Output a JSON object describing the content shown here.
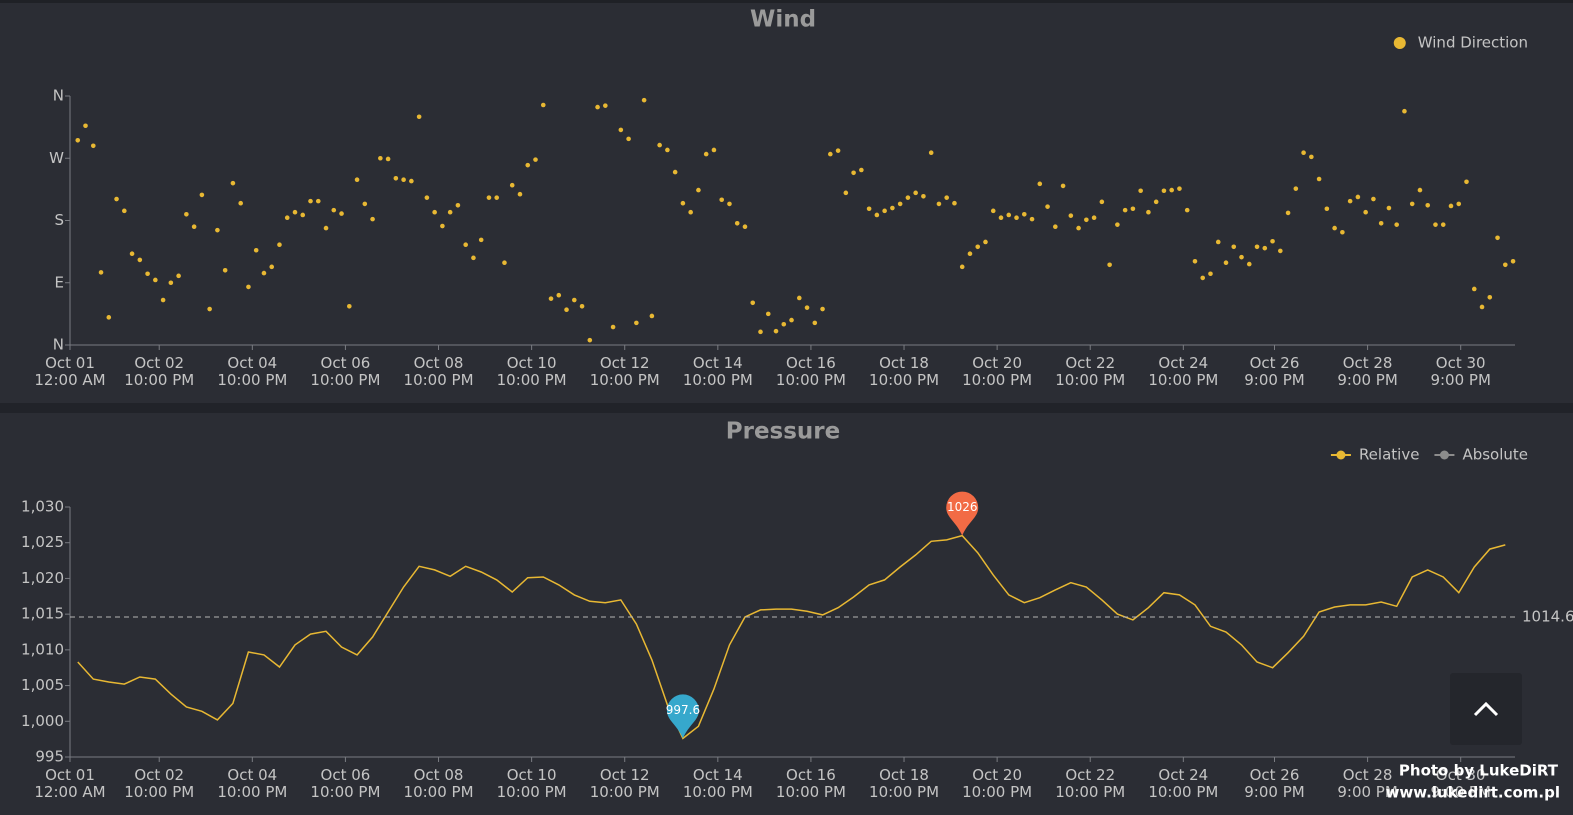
{
  "chart_data": [
    {
      "type": "scatter",
      "title": "Wind",
      "series": [
        {
          "name": "Wind Direction",
          "color": "#e8b833",
          "values": [
            296,
            317,
            288,
            105,
            40,
            211,
            194,
            132,
            123,
            103,
            94,
            65,
            90,
            100,
            189,
            171,
            217,
            52,
            166,
            108,
            234,
            205,
            84,
            137,
            104,
            113,
            145,
            184,
            192,
            188,
            208,
            208,
            169,
            195,
            190,
            56,
            239,
            204,
            182,
            270,
            269,
            241,
            239,
            237,
            330,
            213,
            192,
            172,
            192,
            202,
            145,
            126,
            152,
            213,
            213,
            119,
            231,
            218,
            260,
            268,
            347,
            67,
            72,
            51,
            65,
            56,
            7,
            344,
            346,
            26,
            311,
            298,
            32,
            354,
            42,
            289,
            282,
            250,
            205,
            192,
            224,
            276,
            282,
            210,
            204,
            176,
            171,
            61,
            19,
            45,
            20,
            30,
            36,
            68,
            54,
            32,
            52,
            276,
            281,
            220,
            249,
            253,
            197,
            188,
            194,
            198,
            204,
            213,
            220,
            215,
            278,
            204,
            213,
            205,
            113,
            132,
            142,
            149,
            194,
            184,
            188,
            184,
            189,
            182,
            233,
            200,
            171,
            230,
            187,
            169,
            181,
            184,
            207,
            116,
            174,
            195,
            197,
            223,
            192,
            207,
            223,
            224,
            226,
            195,
            121,
            97,
            103,
            149,
            119,
            142,
            127,
            117,
            142,
            140,
            150,
            136,
            191,
            226,
            278,
            272,
            240,
            197,
            169,
            163,
            208,
            214,
            192,
            211,
            176,
            198,
            174,
            338,
            204,
            224,
            202,
            174,
            174,
            201,
            204,
            236,
            81,
            55,
            69,
            155,
            116,
            121
          ]
        }
      ],
      "x": [
        4,
        8,
        12,
        16,
        20,
        24,
        28,
        32,
        36,
        40,
        44,
        48,
        52,
        56,
        60,
        64,
        68,
        72,
        76,
        80,
        84,
        88,
        92,
        96,
        100,
        104,
        108,
        112,
        116,
        120,
        124,
        128,
        132,
        136,
        140,
        144,
        148,
        152,
        156,
        160,
        164,
        168,
        172,
        176,
        180,
        184,
        188,
        192,
        196,
        200,
        204,
        208,
        212,
        216,
        220,
        224,
        228,
        232,
        236,
        240,
        244,
        248,
        252,
        256,
        260,
        264,
        268,
        272,
        276,
        280,
        284,
        288,
        292,
        296,
        300,
        304,
        308,
        312,
        316,
        320,
        324,
        328,
        332,
        336,
        340,
        344,
        348,
        352,
        356,
        360,
        364,
        368,
        372,
        376,
        380,
        384,
        388,
        392,
        396,
        400,
        404,
        408,
        412,
        416,
        420,
        424,
        428,
        432,
        436,
        440,
        444,
        448,
        452,
        456,
        460,
        464,
        468,
        472,
        476,
        480,
        484,
        488,
        492,
        496,
        500,
        504,
        508,
        512,
        516,
        520,
        524,
        528,
        532,
        536,
        540,
        544,
        548,
        552,
        556,
        560,
        564,
        568,
        572,
        576,
        580,
        584,
        588,
        592,
        596,
        600,
        604,
        608,
        612,
        616,
        620,
        624,
        628,
        632,
        636,
        640,
        644,
        648,
        652,
        656,
        660,
        664,
        668,
        672,
        676,
        680,
        684,
        688,
        692,
        696,
        700,
        704,
        708,
        712,
        716,
        720,
        724,
        728,
        732,
        736,
        740,
        744
      ],
      "xlim": [
        0,
        745
      ],
      "xticks": [
        {
          "value": 0,
          "label": [
            "Oct 01",
            "12:00 AM"
          ]
        },
        {
          "value": 46,
          "label": [
            "Oct 02",
            "10:00 PM"
          ]
        },
        {
          "value": 94,
          "label": [
            "Oct 04",
            "10:00 PM"
          ]
        },
        {
          "value": 142,
          "label": [
            "Oct 06",
            "10:00 PM"
          ]
        },
        {
          "value": 190,
          "label": [
            "Oct 08",
            "10:00 PM"
          ]
        },
        {
          "value": 238,
          "label": [
            "Oct 10",
            "10:00 PM"
          ]
        },
        {
          "value": 286,
          "label": [
            "Oct 12",
            "10:00 PM"
          ]
        },
        {
          "value": 334,
          "label": [
            "Oct 14",
            "10:00 PM"
          ]
        },
        {
          "value": 382,
          "label": [
            "Oct 16",
            "10:00 PM"
          ]
        },
        {
          "value": 430,
          "label": [
            "Oct 18",
            "10:00 PM"
          ]
        },
        {
          "value": 478,
          "label": [
            "Oct 20",
            "10:00 PM"
          ]
        },
        {
          "value": 526,
          "label": [
            "Oct 22",
            "10:00 PM"
          ]
        },
        {
          "value": 574,
          "label": [
            "Oct 24",
            "10:00 PM"
          ]
        },
        {
          "value": 621,
          "label": [
            "Oct 26",
            "9:00 PM"
          ]
        },
        {
          "value": 669,
          "label": [
            "Oct 28",
            "9:00 PM"
          ]
        },
        {
          "value": 717,
          "label": [
            "Oct 30",
            "9:00 PM"
          ]
        }
      ],
      "ylim": [
        0,
        360
      ],
      "yticks": [
        {
          "value": 0,
          "label": "N"
        },
        {
          "value": 90,
          "label": "E"
        },
        {
          "value": 180,
          "label": "S"
        },
        {
          "value": 270,
          "label": "W"
        },
        {
          "value": 360,
          "label": "N"
        }
      ],
      "legend": "top-right"
    },
    {
      "type": "line",
      "title": "Pressure",
      "series": [
        {
          "name": "Relative",
          "color": "#e8b833",
          "values": [
            1008.3,
            1005.9,
            1005.5,
            1005.2,
            1006.2,
            1005.9,
            1003.8,
            1002.0,
            1001.4,
            1000.2,
            1002.5,
            1009.7,
            1009.3,
            1007.6,
            1010.7,
            1012.2,
            1012.6,
            1010.4,
            1009.3,
            1011.8,
            1015.3,
            1018.8,
            1021.7,
            1021.2,
            1020.3,
            1021.7,
            1020.9,
            1019.8,
            1018.1,
            1020.1,
            1020.2,
            1019.1,
            1017.7,
            1016.8,
            1016.6,
            1017.0,
            1013.6,
            1008.6,
            1002.3,
            997.6,
            999.3,
            1004.5,
            1010.7,
            1014.6,
            1015.6,
            1015.7,
            1015.7,
            1015.4,
            1014.9,
            1015.9,
            1017.4,
            1019.1,
            1019.8,
            1021.6,
            1023.3,
            1025.2,
            1025.4,
            1026,
            1023.6,
            1020.5,
            1017.7,
            1016.6,
            1017.3,
            1018.4,
            1019.4,
            1018.8,
            1017.0,
            1015.0,
            1014.2,
            1015.9,
            1018.0,
            1017.7,
            1016.3,
            1013.3,
            1012.5,
            1010.7,
            1008.3,
            1007.5,
            1009.6,
            1011.9,
            1015.3,
            1016.0,
            1016.3,
            1016.3,
            1016.7,
            1016.1,
            1020.2,
            1021.2,
            1020.2,
            1018.0,
            1021.6,
            1024.1,
            1024.7
          ]
        },
        {
          "name": "Absolute",
          "color": "#8c8c8c",
          "visible": false
        }
      ],
      "x": [
        4,
        12,
        20,
        28,
        36,
        44,
        52,
        60,
        68,
        76,
        84,
        92,
        100,
        108,
        116,
        124,
        132,
        140,
        148,
        156,
        164,
        172,
        180,
        188,
        196,
        204,
        212,
        220,
        228,
        236,
        244,
        252,
        260,
        268,
        276,
        284,
        292,
        300,
        308,
        316,
        324,
        332,
        340,
        348,
        356,
        364,
        372,
        380,
        388,
        396,
        404,
        412,
        420,
        428,
        436,
        444,
        452,
        460,
        468,
        476,
        484,
        492,
        500,
        508,
        516,
        524,
        532,
        540,
        548,
        556,
        564,
        572,
        580,
        588,
        596,
        604,
        612,
        620,
        628,
        636,
        644,
        652,
        660,
        668,
        676,
        684,
        692,
        700,
        708,
        716,
        724,
        732,
        740
      ],
      "xlim": [
        0,
        745
      ],
      "xticks": [
        {
          "value": 0,
          "label": [
            "Oct 01",
            "12:00 AM"
          ]
        },
        {
          "value": 46,
          "label": [
            "Oct 02",
            "10:00 PM"
          ]
        },
        {
          "value": 94,
          "label": [
            "Oct 04",
            "10:00 PM"
          ]
        },
        {
          "value": 142,
          "label": [
            "Oct 06",
            "10:00 PM"
          ]
        },
        {
          "value": 190,
          "label": [
            "Oct 08",
            "10:00 PM"
          ]
        },
        {
          "value": 238,
          "label": [
            "Oct 10",
            "10:00 PM"
          ]
        },
        {
          "value": 286,
          "label": [
            "Oct 12",
            "10:00 PM"
          ]
        },
        {
          "value": 334,
          "label": [
            "Oct 14",
            "10:00 PM"
          ]
        },
        {
          "value": 382,
          "label": [
            "Oct 16",
            "10:00 PM"
          ]
        },
        {
          "value": 430,
          "label": [
            "Oct 18",
            "10:00 PM"
          ]
        },
        {
          "value": 478,
          "label": [
            "Oct 20",
            "10:00 PM"
          ]
        },
        {
          "value": 526,
          "label": [
            "Oct 22",
            "10:00 PM"
          ]
        },
        {
          "value": 574,
          "label": [
            "Oct 24",
            "10:00 PM"
          ]
        },
        {
          "value": 621,
          "label": [
            "Oct 26",
            "9:00 PM"
          ]
        },
        {
          "value": 669,
          "label": [
            "Oct 28",
            "9:00 PM"
          ]
        },
        {
          "value": 717,
          "label": [
            "Oct 30",
            "9:00 PM"
          ]
        }
      ],
      "ylim": [
        995,
        1030
      ],
      "yticks": [
        995,
        {
          "value": 1000,
          "label": "1,000"
        },
        {
          "value": 1005,
          "label": "1,005"
        },
        {
          "value": 1010,
          "label": "1,010"
        },
        {
          "value": 1015,
          "label": "1,015"
        },
        {
          "value": 1020,
          "label": "1,020"
        },
        {
          "value": 1025,
          "label": "1,025"
        },
        {
          "value": 1030,
          "label": "1,030"
        }
      ],
      "max": 1026,
      "min": 997.6,
      "average": 1014.6,
      "legend": "top-right"
    }
  ],
  "watermark": [
    "Photo by LukeDiRT",
    "www.lukedirt.com.pl"
  ]
}
